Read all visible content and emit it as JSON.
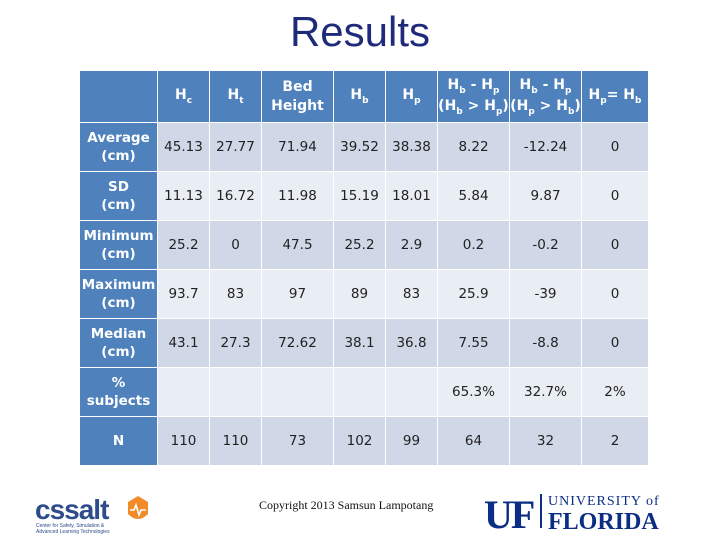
{
  "title": "Results",
  "table": {
    "headers": [
      {
        "main": "H",
        "sub": "c"
      },
      {
        "main": "H",
        "sub": "t"
      },
      {
        "line1": "Bed",
        "line2": "Height"
      },
      {
        "main": "H",
        "sub": "b"
      },
      {
        "main": "H",
        "sub": "p"
      },
      {
        "t1": "H",
        "s1": "b",
        "t2": " - H",
        "s2": "p",
        "t3": "(H",
        "s3": "b",
        "t4": " > H",
        "s4": "p",
        "t5": ")"
      },
      {
        "t1": "H",
        "s1": "b",
        "t2": " - H",
        "s2": "p",
        "t3": "(H",
        "s3": "p",
        "t4": " > H",
        "s4": "b",
        "t5": ")"
      },
      {
        "t1": "H",
        "s1": "p",
        "t2": "= H",
        "s2": "b"
      }
    ],
    "rows": [
      {
        "l1": "Average",
        "l2": "(cm)",
        "cells": [
          "45.13",
          "27.77",
          "71.94",
          "39.52",
          "38.38",
          "8.22",
          "-12.24",
          "0"
        ]
      },
      {
        "l1": "SD",
        "l2": "(cm)",
        "cells": [
          "11.13",
          "16.72",
          "11.98",
          "15.19",
          "18.01",
          "5.84",
          "9.87",
          "0"
        ]
      },
      {
        "l1": "Minimum",
        "l2": "(cm)",
        "cells": [
          "25.2",
          "0",
          "47.5",
          "25.2",
          "2.9",
          "0.2",
          "-0.2",
          "0"
        ]
      },
      {
        "l1": "Maximum",
        "l2": "(cm)",
        "cells": [
          "93.7",
          "83",
          "97",
          "89",
          "83",
          "25.9",
          "-39",
          "0"
        ]
      },
      {
        "l1": "Median",
        "l2": "(cm)",
        "cells": [
          "43.1",
          "27.3",
          "72.62",
          "38.1",
          "36.8",
          "7.55",
          "-8.8",
          "0"
        ]
      },
      {
        "l1": "%",
        "l2": "subjects",
        "cells": [
          "",
          "",
          "",
          "",
          "",
          "65.3%",
          "32.7%",
          "2%"
        ]
      },
      {
        "l1": "N",
        "l2": "",
        "cells": [
          "110",
          "110",
          "73",
          "102",
          "99",
          "64",
          "32",
          "2"
        ]
      }
    ]
  },
  "footer": "Copyright 2013 Samsun Lampotang",
  "logos": {
    "cssalt": {
      "name": "cssalt",
      "caption1": "Center for Safety, Simulation &",
      "caption2": "Advanced Learning Technologies"
    },
    "uf": {
      "mark": "UF",
      "line1": "UNIVERSITY of",
      "line2": "FLORIDA"
    }
  },
  "colors": {
    "title": "#1f2a7a",
    "header": "#4f81bd",
    "row_odd": "#d0d8e8",
    "row_even": "#e9edf4",
    "cssalt_blue": "#2e4b8c",
    "cssalt_orange": "#f28c28",
    "uf_blue": "#0b2d84"
  }
}
